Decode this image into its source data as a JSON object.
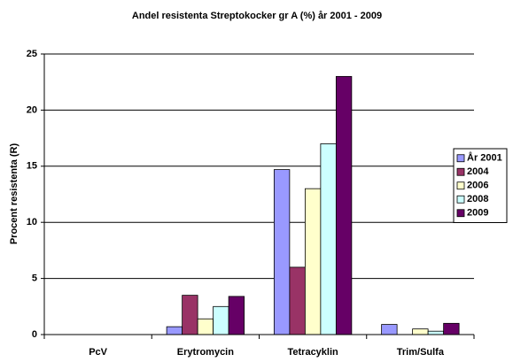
{
  "chart_data": {
    "type": "bar",
    "title": "Andel resistenta Streptokocker gr A (%) år 2001 - 2009",
    "y_label": "Procent resistenta (R)",
    "categories": [
      "PcV",
      "Erytromycin",
      "Tetracyklin",
      "Trim/Sulfa"
    ],
    "series": [
      {
        "name": "År 2001",
        "color": "#9999ff",
        "values": [
          0,
          0.7,
          14.7,
          0.9
        ]
      },
      {
        "name": "2004",
        "color": "#993366",
        "values": [
          0,
          3.5,
          6,
          0
        ]
      },
      {
        "name": "2006",
        "color": "#ffffcc",
        "values": [
          0,
          1.4,
          13,
          0.5
        ]
      },
      {
        "name": "2008",
        "color": "#ccffff",
        "values": [
          0,
          2.5,
          17,
          0.3
        ]
      },
      {
        "name": "2009",
        "color": "#660066",
        "values": [
          0,
          3.4,
          23,
          1.0
        ]
      }
    ],
    "ylim": [
      0,
      25
    ],
    "yticks": [
      0,
      5,
      10,
      15,
      20,
      25
    ],
    "grid": true,
    "legend": "right"
  }
}
